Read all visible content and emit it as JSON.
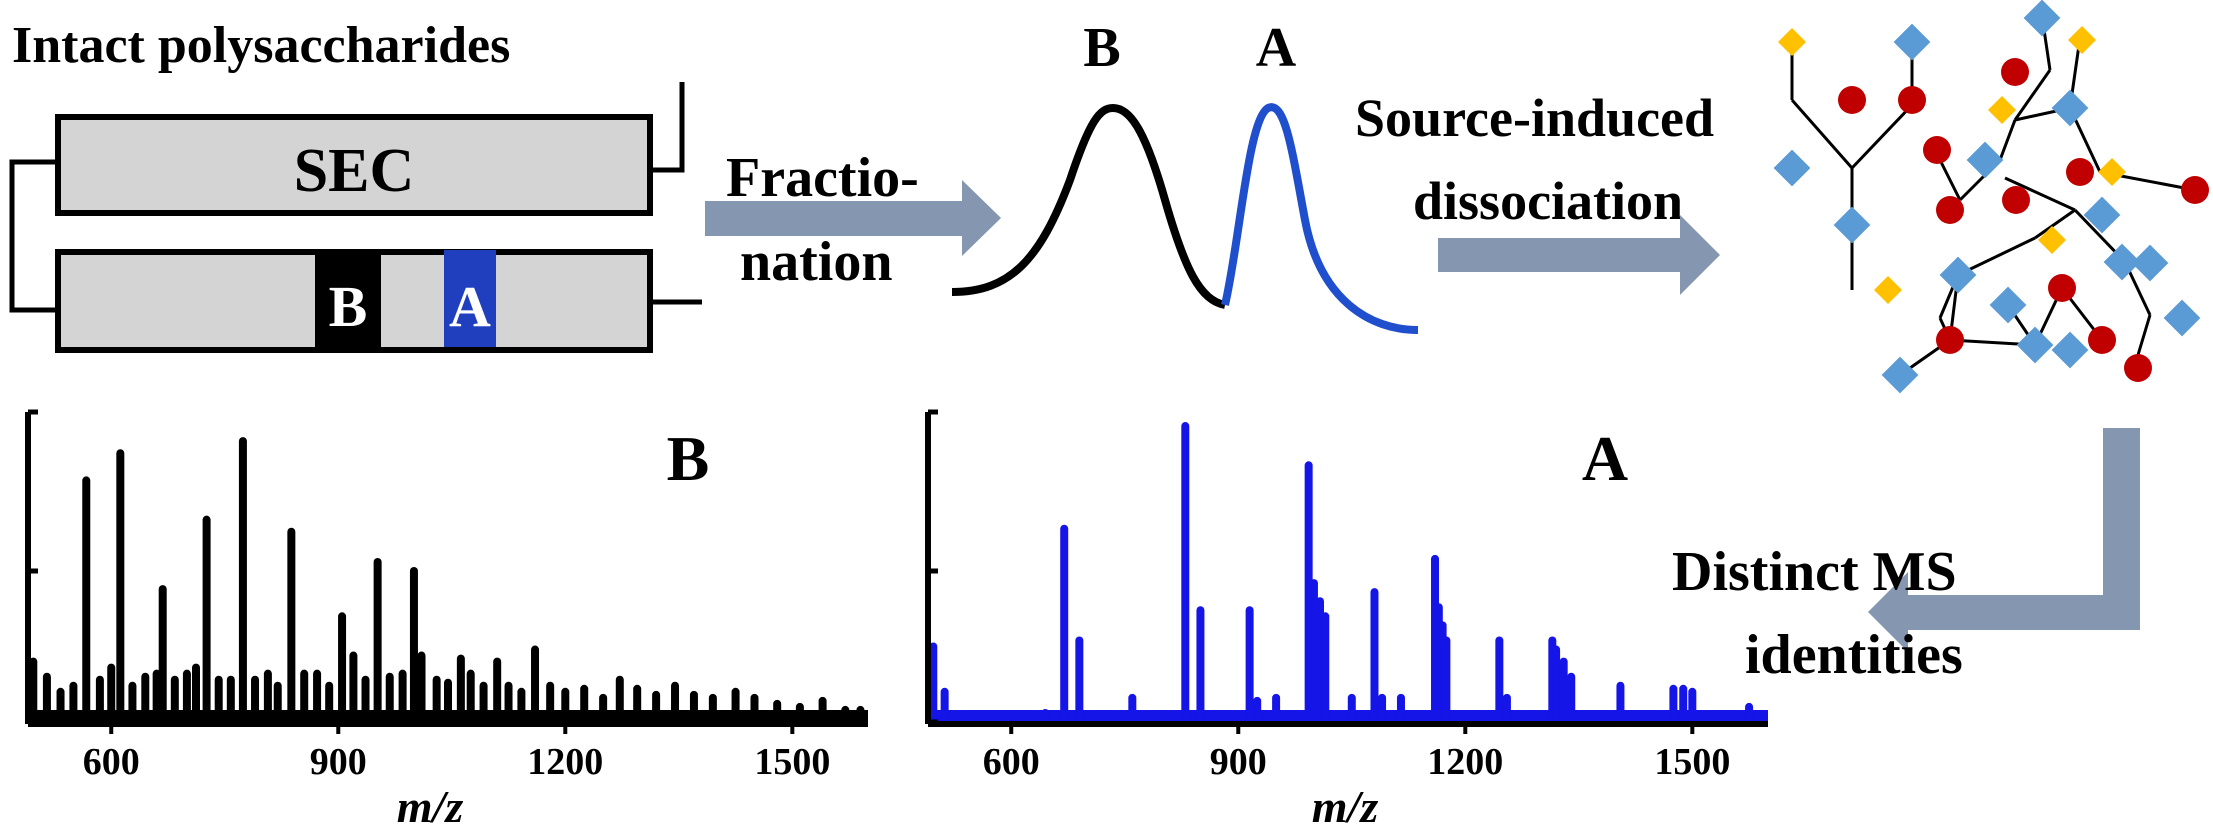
{
  "title": "Intact polysaccharides",
  "sec_label": "SEC",
  "fraction_b": "B",
  "fraction_a": "A",
  "step_fractionation": [
    "Fractio-",
    "nation"
  ],
  "step_sid": [
    "Source-induced",
    "dissociation"
  ],
  "step_ms": [
    "Distinct MS",
    "identities"
  ],
  "colors": {
    "black": "#000000",
    "blue_fraction": "#1f3fbf",
    "blue_trace": "#1f4fcc",
    "blue_spectrum": "#1515e8",
    "column_fill": "#d4d4d4",
    "arrow": "#8496b0",
    "glycan_square": "#5b9bd5",
    "glycan_circle": "#c00000",
    "glycan_diamond": "#ffc000"
  },
  "icons": [
    "chromatogram-trace",
    "glycan-structure-cluster",
    "arrow-right",
    "arrow-down-left"
  ],
  "chart_data": [
    {
      "type": "bar",
      "name": "B",
      "xlabel": "m/z",
      "xticks": [
        600,
        900,
        1200,
        1500
      ],
      "xlim": [
        490,
        1600
      ],
      "ylim": [
        0,
        100
      ],
      "color": "#000000",
      "x": [
        497,
        515,
        533,
        550,
        567,
        585,
        600,
        612,
        628,
        645,
        660,
        668,
        684,
        700,
        712,
        726,
        742,
        758,
        774,
        790,
        807,
        820,
        838,
        855,
        872,
        888,
        905,
        920,
        936,
        952,
        968,
        985,
        1000,
        1010,
        1030,
        1045,
        1062,
        1075,
        1092,
        1110,
        1125,
        1142,
        1160,
        1180,
        1200,
        1225,
        1250,
        1272,
        1295,
        1320,
        1345,
        1370,
        1395,
        1425,
        1450,
        1480,
        1510,
        1540,
        1570,
        1590
      ],
      "values": [
        20,
        15,
        10,
        12,
        80,
        14,
        18,
        89,
        12,
        15,
        16,
        44,
        14,
        16,
        18,
        67,
        14,
        14,
        93,
        14,
        16,
        12,
        63,
        16,
        16,
        12,
        35,
        22,
        14,
        53,
        15,
        16,
        50,
        22,
        14,
        13,
        21,
        16,
        12,
        20,
        12,
        10,
        24,
        12,
        10,
        11,
        8,
        14,
        11,
        9,
        12,
        9,
        8,
        10,
        8,
        6,
        5,
        7,
        4,
        4
      ]
    },
    {
      "type": "bar",
      "name": "A",
      "xlabel": "m/z",
      "xticks": [
        600,
        900,
        1200,
        1500
      ],
      "xlim": [
        490,
        1600
      ],
      "ylim": [
        0,
        100
      ],
      "color": "#1515e8",
      "x": [
        497,
        512,
        560,
        645,
        670,
        690,
        760,
        830,
        850,
        915,
        925,
        950,
        993,
        1000,
        1008,
        1015,
        1050,
        1080,
        1090,
        1115,
        1160,
        1165,
        1170,
        1175,
        1245,
        1255,
        1315,
        1320,
        1330,
        1340,
        1405,
        1475,
        1488,
        1500,
        1575
      ],
      "values": [
        25,
        10,
        2,
        3,
        64,
        27,
        8,
        98,
        37,
        37,
        7,
        8,
        85,
        46,
        40,
        35,
        8,
        43,
        8,
        8,
        54,
        38,
        32,
        27,
        27,
        8,
        27,
        24,
        20,
        15,
        12,
        11,
        11,
        10,
        5
      ]
    }
  ]
}
